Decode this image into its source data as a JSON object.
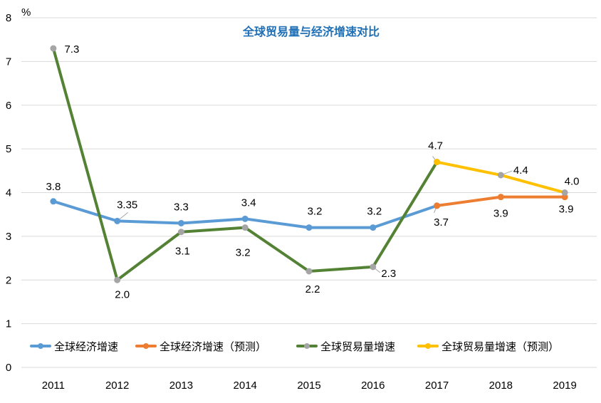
{
  "chart_data": {
    "type": "line",
    "title": "全球贸易量与经济增速对比",
    "ylabel": "%",
    "xlabel": "",
    "ylim": [
      0,
      8
    ],
    "yticks": [
      "0",
      "1",
      "2",
      "3",
      "4",
      "5",
      "6",
      "7",
      "8"
    ],
    "categories": [
      "2011",
      "2012",
      "2013",
      "2014",
      "2015",
      "2016",
      "2017",
      "2018",
      "2019"
    ],
    "grid": true,
    "legend_position": "bottom",
    "series": [
      {
        "name": "全球经济增速",
        "color": "#5b9bd5",
        "values": [
          3.8,
          3.35,
          3.3,
          3.4,
          3.2,
          3.2,
          3.7,
          null,
          null
        ],
        "labels": [
          "3.8",
          "3.35",
          "3.3",
          "3.4",
          "3.2",
          "3.2",
          "3.7",
          "",
          ""
        ]
      },
      {
        "name": "全球经济增速（预测）",
        "color": "#ed7d31",
        "values": [
          null,
          null,
          null,
          null,
          null,
          null,
          3.7,
          3.9,
          3.9
        ],
        "labels": [
          "",
          "",
          "",
          "",
          "",
          "",
          "",
          "3.9",
          "3.9"
        ]
      },
      {
        "name": "全球贸易量增速",
        "color": "#548235",
        "values": [
          7.3,
          2.0,
          3.1,
          3.2,
          2.2,
          2.3,
          4.7,
          null,
          null
        ],
        "labels": [
          "7.3",
          "2.0",
          "3.1",
          "3.2",
          "2.2",
          "2.3",
          "4.7",
          "",
          ""
        ]
      },
      {
        "name": "全球贸易量增速（预测）",
        "color": "#ffc000",
        "values": [
          null,
          null,
          null,
          null,
          null,
          null,
          4.7,
          4.4,
          4.0
        ],
        "labels": [
          "",
          "",
          "",
          "",
          "",
          "",
          "",
          "4.4",
          "4.0"
        ]
      }
    ]
  }
}
